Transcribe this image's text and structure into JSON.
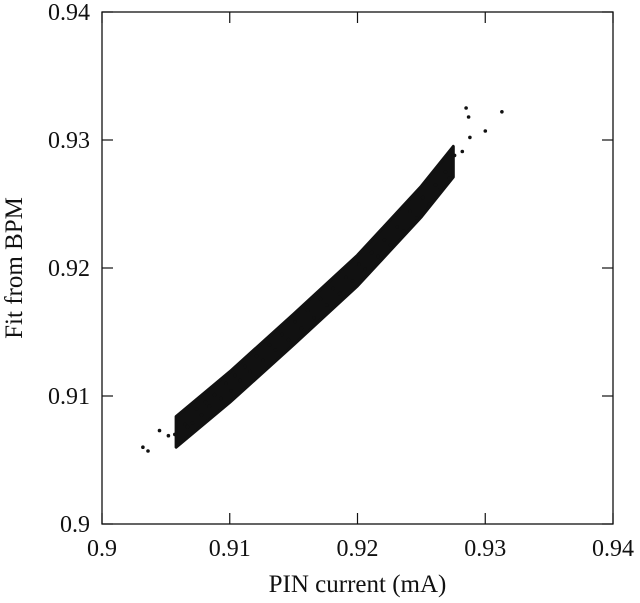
{
  "chart_data": {
    "type": "scatter",
    "title": "",
    "xlabel": "PIN current (mA)",
    "ylabel": "Fit from BPM",
    "xlim": [
      0.9,
      0.94
    ],
    "ylim": [
      0.9,
      0.94
    ],
    "xticks": [
      0.9,
      0.91,
      0.92,
      0.93,
      0.94
    ],
    "yticks": [
      0.9,
      0.91,
      0.92,
      0.93,
      0.94
    ],
    "xtick_labels": [
      "0.9",
      "0.91",
      "0.92",
      "0.93",
      "0.94"
    ],
    "ytick_labels": [
      "0.9",
      "0.91",
      "0.92",
      "0.93",
      "0.94"
    ],
    "grid": false,
    "legend": "none",
    "marker_color": "#111111",
    "description": "dense elongated cloud of points along an increasing band",
    "band": {
      "x_range": [
        0.9058,
        0.9275
      ],
      "centerline": [
        [
          0.9058,
          0.9072
        ],
        [
          0.91,
          0.9107
        ],
        [
          0.915,
          0.9152
        ],
        [
          0.92,
          0.9198
        ],
        [
          0.925,
          0.9252
        ],
        [
          0.9275,
          0.9283
        ]
      ],
      "half_width_y": 0.0012
    },
    "series": [
      {
        "values": [
          [
            0.9032,
            0.906
          ],
          [
            0.9036,
            0.9057
          ],
          [
            0.9045,
            0.9073
          ],
          [
            0.9052,
            0.9069
          ],
          [
            0.9057,
            0.907
          ],
          [
            0.906,
            0.9082
          ],
          [
            0.9065,
            0.9078
          ],
          [
            0.9067,
            0.9076
          ],
          [
            0.9071,
            0.9079
          ],
          [
            0.9074,
            0.909
          ],
          [
            0.9078,
            0.9085
          ],
          [
            0.9081,
            0.9095
          ],
          [
            0.9084,
            0.9092
          ],
          [
            0.9088,
            0.9101
          ],
          [
            0.9093,
            0.9098
          ],
          [
            0.9097,
            0.911
          ],
          [
            0.9101,
            0.9104
          ],
          [
            0.9104,
            0.9116
          ],
          [
            0.9108,
            0.9112
          ],
          [
            0.9112,
            0.9123
          ],
          [
            0.9116,
            0.9119
          ],
          [
            0.9121,
            0.9131
          ],
          [
            0.9126,
            0.9128
          ],
          [
            0.9131,
            0.914
          ],
          [
            0.9136,
            0.9136
          ],
          [
            0.9141,
            0.9148
          ],
          [
            0.9146,
            0.9144
          ],
          [
            0.9151,
            0.9158
          ],
          [
            0.9156,
            0.9153
          ],
          [
            0.9161,
            0.9167
          ],
          [
            0.9166,
            0.9161
          ],
          [
            0.9171,
            0.9176
          ],
          [
            0.9176,
            0.9171
          ],
          [
            0.9181,
            0.9184
          ],
          [
            0.9186,
            0.918
          ],
          [
            0.9191,
            0.9193
          ],
          [
            0.9196,
            0.919
          ],
          [
            0.9201,
            0.9203
          ],
          [
            0.9206,
            0.9199
          ],
          [
            0.9211,
            0.9212
          ],
          [
            0.9216,
            0.9209
          ],
          [
            0.9221,
            0.9222
          ],
          [
            0.9226,
            0.9218
          ],
          [
            0.9231,
            0.9232
          ],
          [
            0.9236,
            0.9229
          ],
          [
            0.9241,
            0.9244
          ],
          [
            0.9246,
            0.9239
          ],
          [
            0.9251,
            0.9255
          ],
          [
            0.9256,
            0.925
          ],
          [
            0.9261,
            0.9265
          ],
          [
            0.9265,
            0.9262
          ],
          [
            0.9269,
            0.9275
          ],
          [
            0.9272,
            0.927
          ],
          [
            0.9276,
            0.9288
          ],
          [
            0.9282,
            0.9291
          ],
          [
            0.9288,
            0.9302
          ],
          [
            0.9285,
            0.9325
          ],
          [
            0.9287,
            0.9318
          ],
          [
            0.93,
            0.9307
          ],
          [
            0.9313,
            0.9322
          ]
        ]
      }
    ]
  }
}
